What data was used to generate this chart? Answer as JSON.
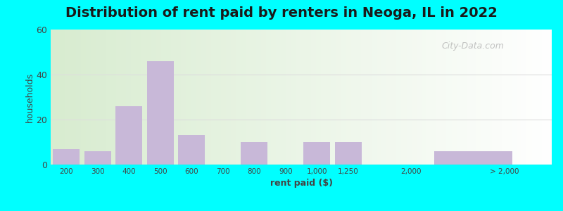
{
  "title": "Distribution of rent paid by renters in Neoga, IL in 2022",
  "xlabel": "rent paid ($)",
  "ylabel": "households",
  "bar_color": "#c8b8d8",
  "outer_bg": "#00ffff",
  "plot_bg_left": "#d8ecd0",
  "plot_bg_right": "#f0f8f0",
  "ylim": [
    0,
    60
  ],
  "yticks": [
    0,
    20,
    40,
    60
  ],
  "title_fontsize": 14,
  "watermark": "City-Data.com",
  "tick_labels": [
    "200",
    "300",
    "400",
    "500",
    "600",
    "700",
    "800",
    "900",
    "1,000",
    "1,250",
    "2,000",
    "> 2,000"
  ],
  "tick_positions": [
    0,
    1,
    2,
    3,
    4,
    5,
    6,
    7,
    8,
    9,
    11,
    14
  ],
  "bar_positions": [
    0,
    1,
    2,
    3,
    4,
    5,
    6,
    7,
    8,
    9,
    13
  ],
  "bar_widths": [
    0.85,
    0.85,
    0.85,
    0.85,
    0.85,
    0.85,
    0.85,
    0.85,
    0.85,
    0.85,
    2.5
  ],
  "bar_values": [
    7,
    6,
    26,
    46,
    13,
    0,
    10,
    0,
    10,
    10,
    6
  ],
  "xlim": [
    -0.5,
    15.5
  ]
}
